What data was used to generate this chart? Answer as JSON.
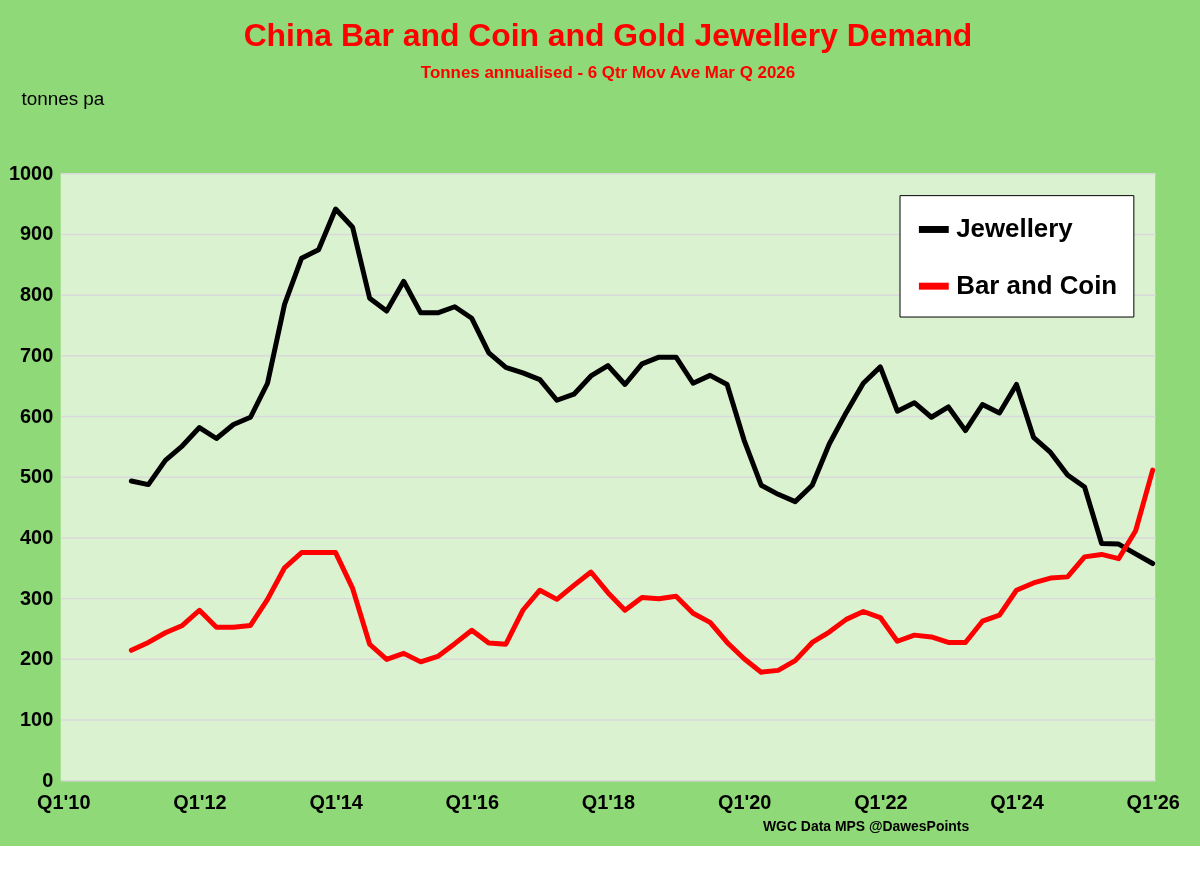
{
  "chart_data": {
    "type": "line",
    "title": "China Bar and Coin and Gold Jewellery Demand",
    "subtitle": "Tonnes annualised - 6 Qtr Mov Ave Mar Q 2026",
    "ylabel": "tonnes pa",
    "annotations": [
      "WGC Data   MPS  @DawesPoints"
    ],
    "categories": [
      "Q1'10",
      null,
      null,
      null,
      null,
      null,
      null,
      null,
      "Q1'12",
      null,
      null,
      null,
      null,
      null,
      null,
      null,
      "Q1'14",
      null,
      null,
      null,
      null,
      null,
      null,
      null,
      "Q1'16",
      null,
      null,
      null,
      null,
      null,
      null,
      null,
      "Q1'18",
      null,
      null,
      null,
      null,
      null,
      null,
      null,
      "Q1'20",
      null,
      null,
      null,
      null,
      null,
      null,
      null,
      "Q1'22",
      null,
      null,
      null,
      null,
      null,
      null,
      null,
      "Q1'24",
      null,
      null,
      null,
      null,
      null,
      null,
      null,
      "Q1'26"
    ],
    "series": [
      {
        "name": "Jewellery",
        "color": "#000000",
        "values": [
          null,
          null,
          null,
          null,
          493,
          487,
          527,
          551,
          581,
          563,
          586,
          598,
          654,
          784,
          860,
          874,
          941,
          911,
          794,
          773,
          822,
          770,
          770,
          780,
          761,
          704,
          680,
          671,
          660,
          626,
          636,
          666,
          683,
          652,
          686,
          697,
          697,
          654,
          667,
          652,
          560,
          486,
          471,
          459,
          486,
          554,
          606,
          654,
          681,
          608,
          622,
          598,
          615,
          576,
          619,
          605,
          652,
          565,
          540,
          503,
          483,
          390,
          389,
          373,
          357
        ]
      },
      {
        "name": "Bar and Coin",
        "color": "#ff0000",
        "values": [
          null,
          null,
          null,
          null,
          214,
          227,
          243,
          255,
          280,
          252,
          252,
          255,
          298,
          350,
          375,
          375,
          375,
          316,
          224,
          199,
          209,
          195,
          204,
          225,
          247,
          226,
          224,
          280,
          313,
          298,
          321,
          343,
          309,
          280,
          301,
          299,
          303,
          275,
          260,
          227,
          200,
          178,
          181,
          197,
          227,
          244,
          265,
          278,
          268,
          229,
          239,
          236,
          227,
          227,
          262,
          272,
          313,
          325,
          333,
          335,
          368,
          372,
          365,
          411,
          511
        ]
      }
    ],
    "ylim": [
      0,
      1000
    ],
    "yticks": [
      0,
      100,
      200,
      300,
      400,
      500,
      600,
      700,
      800,
      900,
      1000
    ],
    "grid": "y",
    "legend": "top right",
    "marker": "none",
    "line_style": "solid"
  }
}
